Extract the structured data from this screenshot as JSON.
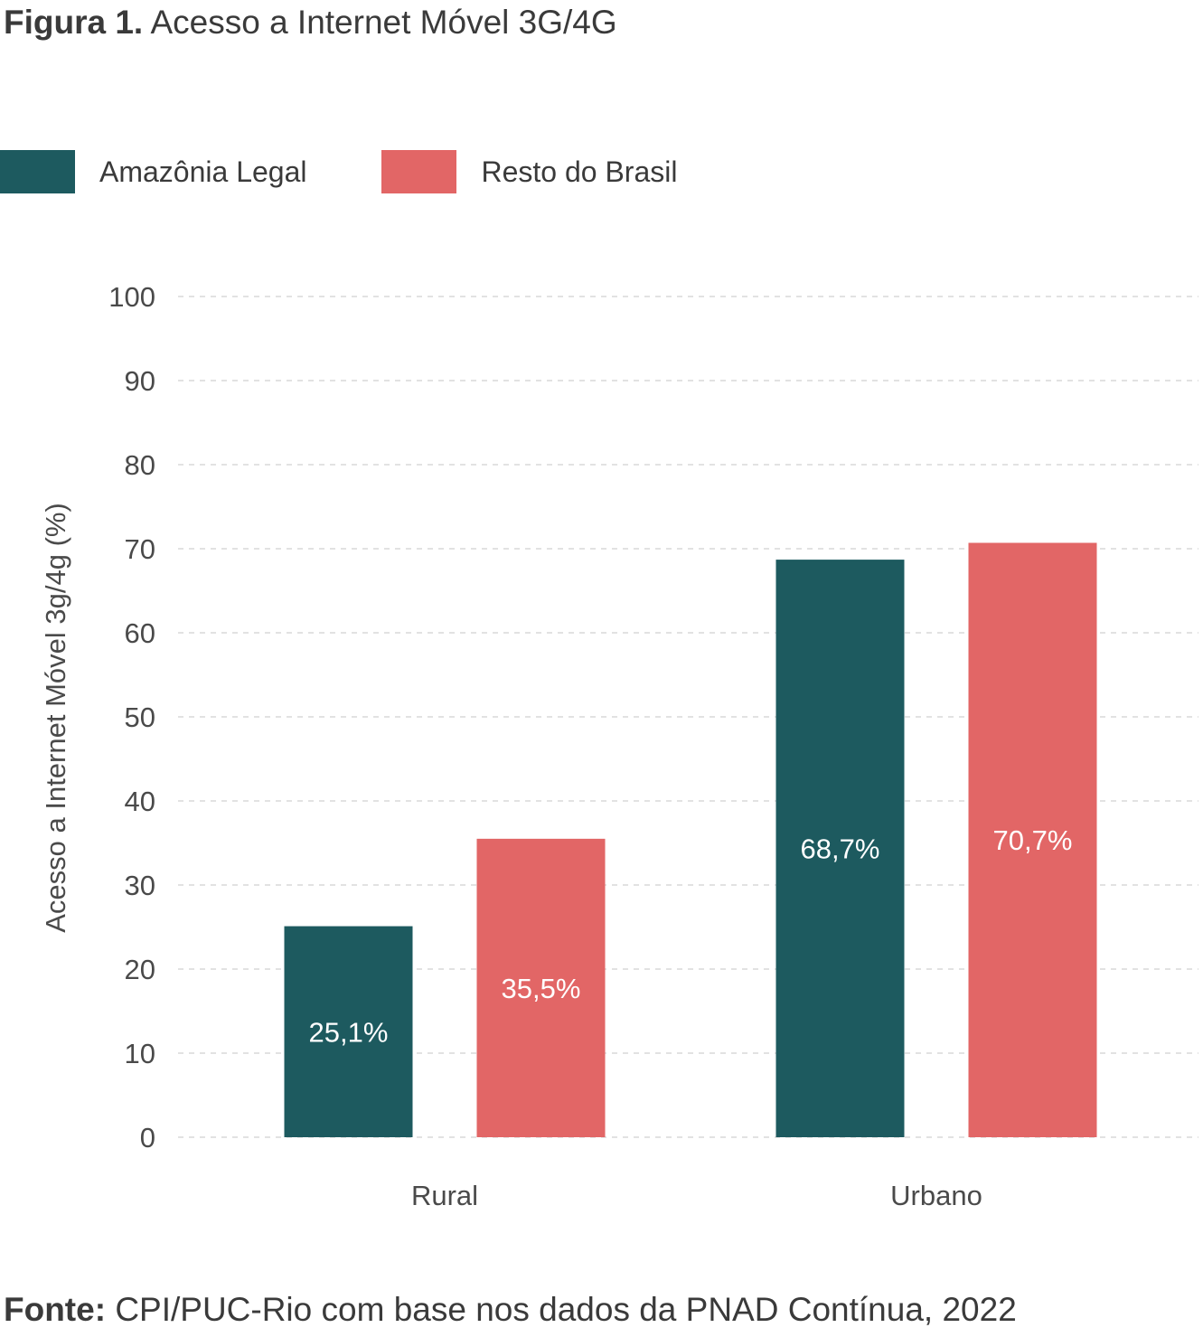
{
  "title": {
    "prefix": "Figura 1.",
    "text": "Acesso a Internet Móvel 3G/4G"
  },
  "footer": {
    "prefix": "Fonte:",
    "text": "CPI/PUC-Rio com base nos dados da PNAD Contínua, 2022"
  },
  "legend": [
    {
      "label": "Amazônia Legal",
      "color": "#1d5a5f"
    },
    {
      "label": "Resto do Brasil",
      "color": "#e26666"
    }
  ],
  "chart_data": {
    "type": "bar",
    "categories": [
      "Rural",
      "Urbano"
    ],
    "series": [
      {
        "name": "Amazônia Legal",
        "color": "#1d5a5f",
        "values": [
          25.1,
          68.7
        ],
        "labels": [
          "25,1%",
          "68,7%"
        ]
      },
      {
        "name": "Resto do Brasil",
        "color": "#e26666",
        "values": [
          35.5,
          70.7
        ],
        "labels": [
          "35,5%",
          "70,7%"
        ]
      }
    ],
    "ylabel": "Acesso a Internet Móvel 3g/4g (%)",
    "xlabel": "",
    "ylim": [
      0,
      100
    ],
    "yticks": [
      "0",
      "10",
      "20",
      "30",
      "40",
      "50",
      "60",
      "70",
      "80",
      "90",
      "100"
    ],
    "grid": true,
    "legend_position": "top-left"
  }
}
